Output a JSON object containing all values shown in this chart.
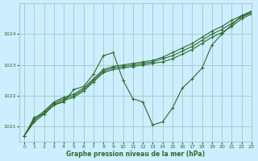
{
  "title": "Graphe pression niveau de la mer (hPa)",
  "background_color": "#cceeff",
  "grid_color": "#aacccc",
  "line_color": "#2d6a2d",
  "marker_color": "#2d6a2d",
  "xlim": [
    -0.5,
    23
  ],
  "ylim": [
    1020.5,
    1025.0
  ],
  "yticks": [
    1021,
    1022,
    1023,
    1024
  ],
  "xticks": [
    0,
    1,
    2,
    3,
    4,
    5,
    6,
    7,
    8,
    9,
    10,
    11,
    12,
    13,
    14,
    15,
    16,
    17,
    18,
    19,
    20,
    21,
    22,
    23
  ],
  "series1": {
    "x": [
      0,
      1,
      2,
      3,
      4,
      5,
      6,
      7,
      8,
      9,
      10,
      11,
      12,
      13,
      14,
      15,
      16,
      17,
      18,
      19,
      20,
      21,
      22,
      23
    ],
    "y": [
      1020.7,
      1021.15,
      1021.4,
      1021.7,
      1021.85,
      1021.95,
      1022.15,
      1022.45,
      1022.75,
      1022.85,
      1022.9,
      1022.95,
      1023.0,
      1023.05,
      1023.1,
      1023.2,
      1023.35,
      1023.5,
      1023.7,
      1023.9,
      1024.05,
      1024.25,
      1024.5,
      1024.65
    ]
  },
  "series2": {
    "x": [
      0,
      1,
      2,
      3,
      4,
      5,
      6,
      7,
      8,
      9,
      10,
      11,
      12,
      13,
      14,
      15,
      16,
      17,
      18,
      19,
      20,
      21,
      22,
      23
    ],
    "y": [
      1020.7,
      1021.2,
      1021.45,
      1021.75,
      1021.9,
      1022.0,
      1022.2,
      1022.5,
      1022.8,
      1022.9,
      1022.95,
      1023.0,
      1023.05,
      1023.1,
      1023.2,
      1023.3,
      1023.45,
      1023.6,
      1023.8,
      1024.0,
      1024.15,
      1024.35,
      1024.55,
      1024.7
    ]
  },
  "series3": {
    "x": [
      0,
      1,
      2,
      3,
      4,
      5,
      6,
      7,
      8,
      9,
      10,
      11,
      12,
      13,
      14,
      15,
      16,
      17,
      18,
      19,
      20,
      21,
      22,
      23
    ],
    "y": [
      1020.7,
      1021.25,
      1021.5,
      1021.8,
      1021.95,
      1022.05,
      1022.25,
      1022.55,
      1022.85,
      1022.95,
      1023.0,
      1023.05,
      1023.1,
      1023.15,
      1023.25,
      1023.4,
      1023.55,
      1023.7,
      1023.9,
      1024.1,
      1024.25,
      1024.45,
      1024.6,
      1024.75
    ]
  },
  "series_actual": {
    "x": [
      0,
      1,
      2,
      3,
      4,
      5,
      6,
      7,
      8,
      9,
      10,
      11,
      12,
      13,
      14,
      15,
      16,
      17,
      18,
      19,
      20,
      21,
      22,
      23
    ],
    "y": [
      1020.7,
      1021.3,
      1021.4,
      1021.7,
      1021.8,
      1022.2,
      1022.3,
      1022.7,
      1023.3,
      1023.4,
      1022.5,
      1021.9,
      1021.8,
      1021.05,
      1021.15,
      1021.6,
      1022.25,
      1022.55,
      1022.9,
      1023.65,
      1024.0,
      1024.3,
      1024.6,
      1024.7
    ]
  }
}
